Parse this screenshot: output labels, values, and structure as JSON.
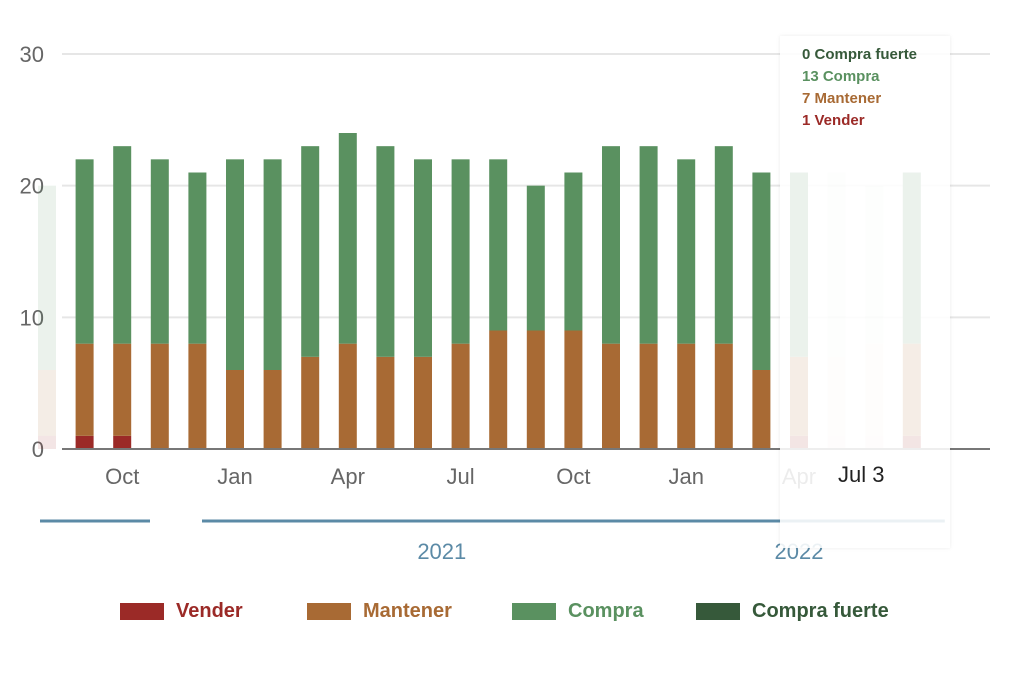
{
  "chart_data": {
    "type": "bar",
    "stacked": true,
    "title": "",
    "xlabel": "",
    "ylabel": "",
    "ylim": [
      0,
      30
    ],
    "y_ticks": [
      "0",
      "10",
      "20",
      "30"
    ],
    "grid": true,
    "legend_position": "bottom",
    "months": [
      "2020-08",
      "2020-09",
      "2020-10",
      "2020-11",
      "2020-12",
      "2021-01",
      "2021-02",
      "2021-03",
      "2021-04",
      "2021-05",
      "2021-06",
      "2021-07",
      "2021-08",
      "2021-09",
      "2021-10",
      "2021-11",
      "2021-12",
      "2022-01",
      "2022-02",
      "2022-03",
      "2022-04",
      "2022-05",
      "2022-06",
      "2022-07"
    ],
    "x_tick_labels": [
      {
        "label": "Oct",
        "month": "2020-10"
      },
      {
        "label": "Jan",
        "month": "2021-01"
      },
      {
        "label": "Apr",
        "month": "2021-04"
      },
      {
        "label": "Jul",
        "month": "2021-07"
      },
      {
        "label": "Oct",
        "month": "2021-10"
      },
      {
        "label": "Jan",
        "month": "2022-01"
      },
      {
        "label": "Apr",
        "month": "2022-04"
      }
    ],
    "year_labels": [
      {
        "label": "2021",
        "from": "2021-01",
        "to": "2021-12"
      },
      {
        "label": "2022",
        "from": "2022-01",
        "to": "2022-07"
      }
    ],
    "series": [
      {
        "name": "Vender",
        "color": "#9b2a27",
        "values": [
          1,
          1,
          1,
          0,
          0,
          0,
          0,
          0,
          0,
          0,
          0,
          0,
          0,
          0,
          0,
          0,
          0,
          0,
          0,
          0,
          1,
          1,
          1,
          1
        ]
      },
      {
        "name": "Mantener",
        "color": "#a86a34",
        "values": [
          5,
          7,
          7,
          8,
          8,
          6,
          6,
          7,
          8,
          7,
          7,
          8,
          9,
          9,
          9,
          8,
          8,
          8,
          8,
          6,
          6,
          6,
          7,
          7
        ]
      },
      {
        "name": "Compra",
        "color": "#5a9160",
        "values": [
          14,
          14,
          15,
          14,
          13,
          16,
          16,
          16,
          16,
          16,
          15,
          14,
          13,
          11,
          12,
          15,
          15,
          14,
          15,
          15,
          14,
          14,
          12,
          13
        ]
      },
      {
        "name": "Compra fuerte",
        "color": "#36593a",
        "values": [
          0,
          0,
          0,
          0,
          0,
          0,
          0,
          0,
          0,
          0,
          0,
          0,
          0,
          0,
          0,
          0,
          0,
          0,
          0,
          0,
          0,
          0,
          0,
          0
        ]
      }
    ],
    "faded_months": [
      "2020-08",
      "2022-05",
      "2022-06"
    ]
  },
  "tooltip": {
    "lines": [
      {
        "text": "0 Compra fuerte",
        "color": "#36593a"
      },
      {
        "text": "13 Compra",
        "color": "#5a9160"
      },
      {
        "text": "7 Mantener",
        "color": "#a86a34"
      },
      {
        "text": "1 Vender",
        "color": "#9b2a27"
      }
    ],
    "date": "Jul 3"
  },
  "legend": [
    {
      "label": "Vender",
      "color": "#9b2a27"
    },
    {
      "label": "Mantener",
      "color": "#a86a34"
    },
    {
      "label": "Compra",
      "color": "#5a9160"
    },
    {
      "label": "Compra fuerte",
      "color": "#36593a"
    }
  ],
  "colors": {
    "grid": "#e6e6e6",
    "axis": "#777777",
    "tick_text": "#666666",
    "year_text": "#5b8aa6",
    "year_line": "#5b8aa6"
  }
}
